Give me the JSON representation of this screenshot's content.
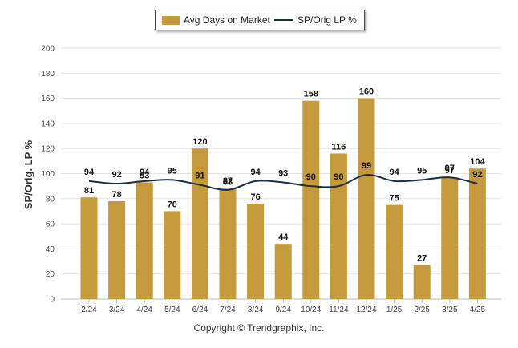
{
  "legend": {
    "bar_label": "Avg Days on Market",
    "line_label": "SP/Orig LP %"
  },
  "copyright": "Copyright © Trendgraphix, Inc.",
  "colors": {
    "bar": "#c49a3c",
    "line": "#1a2e45",
    "grid": "#e3e3e3",
    "axis": "#bbbbbb"
  },
  "chart_data": {
    "type": "bar",
    "title": "",
    "xlabel": "",
    "ylabel": "SP/Orig. LP %",
    "ylim": [
      0,
      200
    ],
    "yticks": [
      0,
      20,
      40,
      60,
      80,
      100,
      120,
      140,
      160,
      180,
      200
    ],
    "grid": true,
    "legend_position": "top",
    "categories": [
      "2/24",
      "3/24",
      "4/24",
      "5/24",
      "6/24",
      "7/24",
      "8/24",
      "9/24",
      "10/24",
      "11/24",
      "12/24",
      "1/25",
      "2/25",
      "3/25",
      "4/25"
    ],
    "series": [
      {
        "name": "Avg Days on Market",
        "type": "bar",
        "values": [
          81,
          78,
          93,
          70,
          120,
          88,
          76,
          44,
          158,
          116,
          160,
          75,
          27,
          97,
          104
        ]
      },
      {
        "name": "SP/Orig LP %",
        "type": "line",
        "values": [
          94,
          92,
          94,
          95,
          91,
          87,
          94,
          93,
          90,
          90,
          99,
          94,
          95,
          97,
          92
        ]
      }
    ]
  }
}
